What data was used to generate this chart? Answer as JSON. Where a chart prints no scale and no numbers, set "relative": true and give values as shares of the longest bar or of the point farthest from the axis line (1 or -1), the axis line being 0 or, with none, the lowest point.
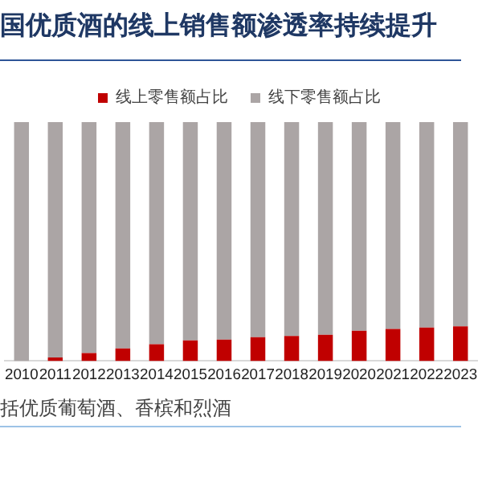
{
  "chart_data": {
    "type": "bar",
    "title": "国优质酒的线上销售额渗透率持续提升",
    "annotations": [
      "括优质葡萄酒、香槟和烈酒"
    ],
    "categories": [
      "2010",
      "2011",
      "2012",
      "2013",
      "2014",
      "2015",
      "2016",
      "2017",
      "2018",
      "2019",
      "2020",
      "2021",
      "2022",
      "2023"
    ],
    "stacked": true,
    "relative": true,
    "legend": "top",
    "grid": false,
    "series": [
      {
        "name": "线上零售额占比",
        "color": "#c00000",
        "values": [
          null,
          0.015,
          0.033,
          0.053,
          0.07,
          0.086,
          0.09,
          0.1,
          0.105,
          0.11,
          0.127,
          0.134,
          0.14,
          0.145
        ]
      },
      {
        "name": "线下零售额占比",
        "color": "#aba5a5",
        "values": [
          1,
          0.985,
          0.967,
          0.947,
          0.93,
          0.914,
          0.91,
          0.9,
          0.895,
          0.89,
          0.873,
          0.866,
          0.86,
          0.855
        ]
      }
    ]
  }
}
